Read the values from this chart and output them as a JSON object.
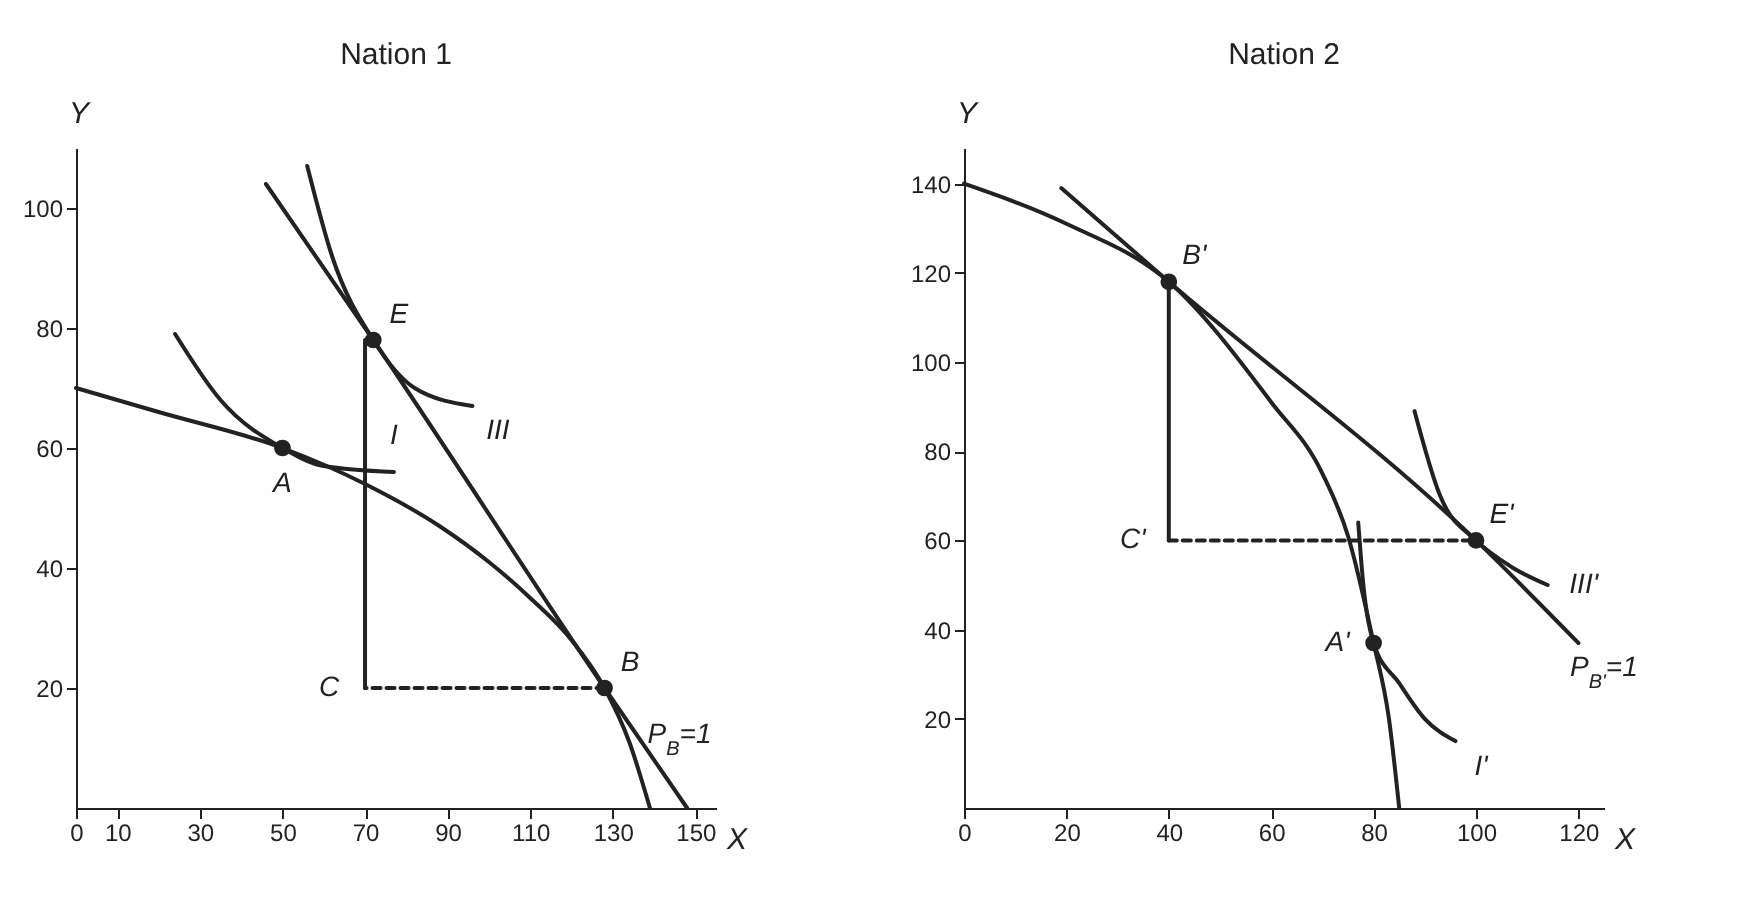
{
  "chart_data": [
    {
      "type": "line",
      "title": "Nation 1",
      "xlabel": "X",
      "ylabel": "Y",
      "xlim": [
        0,
        155
      ],
      "ylim": [
        0,
        110
      ],
      "xticks": [
        0,
        10,
        30,
        50,
        70,
        90,
        110,
        130,
        150
      ],
      "yticks": [
        20,
        40,
        60,
        80,
        100
      ],
      "series": [
        {
          "color": "#222222",
          "x": [
            0,
            20,
            50,
            70,
            88,
            100,
            110,
            120,
            128,
            134,
            139
          ],
          "values": [
            70,
            66,
            60,
            54,
            47,
            41,
            35,
            28,
            20,
            11,
            0
          ]
        },
        {
          "color": "#222222",
          "x": [
            46,
            72,
            128,
            148
          ],
          "values": [
            104,
            78,
            20,
            0
          ]
        },
        {
          "color": "#222222",
          "x": [
            24,
            35,
            50,
            60,
            77
          ],
          "values": [
            79,
            68,
            60,
            57,
            56
          ]
        },
        {
          "color": "#222222",
          "x": [
            56,
            62,
            72,
            82,
            96
          ],
          "values": [
            107,
            92,
            78,
            70,
            67
          ]
        },
        {
          "color": "#222222",
          "x": [
            70,
            70
          ],
          "values": [
            20,
            78
          ]
        },
        {
          "color": "#222222",
          "line_style": "dashed",
          "x": [
            128,
            70
          ],
          "values": [
            20,
            20
          ]
        },
        {
          "type": "scatter",
          "color": "#222222",
          "marker": "circle",
          "x": [
            50,
            72,
            128
          ],
          "values": [
            60,
            78,
            20
          ]
        }
      ],
      "annotations": [
        {
          "text": "A",
          "x": 50,
          "y": 60
        },
        {
          "text": "E",
          "x": 72,
          "y": 78
        },
        {
          "text": "B",
          "x": 128,
          "y": 20
        },
        {
          "text": "C",
          "x": 70,
          "y": 20
        },
        {
          "text": "I",
          "x": 77,
          "y": 56
        },
        {
          "text": "III",
          "x": 96,
          "y": 67
        },
        {
          "text": "P$_{B}$=1",
          "x": 140,
          "y": 8
        }
      ]
    },
    {
      "type": "line",
      "title": "Nation 2",
      "xlabel": "X",
      "ylabel": "Y",
      "xlim": [
        0,
        125
      ],
      "ylim": [
        0,
        148
      ],
      "xticks": [
        0,
        20,
        40,
        60,
        80,
        100,
        120
      ],
      "yticks": [
        20,
        40,
        60,
        80,
        100,
        120,
        140
      ],
      "series": [
        {
          "color": "#222222",
          "x": [
            0,
            20,
            40,
            60,
            70,
            75,
            80,
            83,
            85
          ],
          "values": [
            140,
            131,
            118,
            91,
            75,
            61,
            37,
            20,
            0
          ]
        },
        {
          "color": "#222222",
          "x": [
            19,
            40,
            100,
            120
          ],
          "values": [
            139,
            118,
            60,
            37
          ]
        },
        {
          "color": "#222222",
          "x": [
            77,
            78,
            80,
            85,
            90,
            96
          ],
          "values": [
            64,
            50,
            37,
            28,
            20,
            15
          ]
        },
        {
          "color": "#222222",
          "x": [
            88,
            93,
            100,
            107,
            114
          ],
          "values": [
            89,
            70,
            60,
            54,
            50
          ]
        },
        {
          "color": "#222222",
          "x": [
            40,
            40
          ],
          "values": [
            118,
            60
          ]
        },
        {
          "color": "#222222",
          "line_style": "dashed",
          "x": [
            40,
            100
          ],
          "values": [
            60,
            60
          ]
        },
        {
          "type": "scatter",
          "color": "#222222",
          "marker": "circle",
          "x": [
            40,
            80,
            100
          ],
          "values": [
            118,
            37,
            60
          ]
        }
      ],
      "annotations": [
        {
          "text": "B'",
          "x": 40,
          "y": 118
        },
        {
          "text": "E'",
          "x": 100,
          "y": 60
        },
        {
          "text": "C'",
          "x": 40,
          "y": 60
        },
        {
          "text": "A'",
          "x": 80,
          "y": 37
        },
        {
          "text": "I'",
          "x": 96,
          "y": 15
        },
        {
          "text": "III'",
          "x": 114,
          "y": 50
        },
        {
          "text": "P$_{B'}$=1",
          "x": 120,
          "y": 37
        }
      ]
    }
  ]
}
